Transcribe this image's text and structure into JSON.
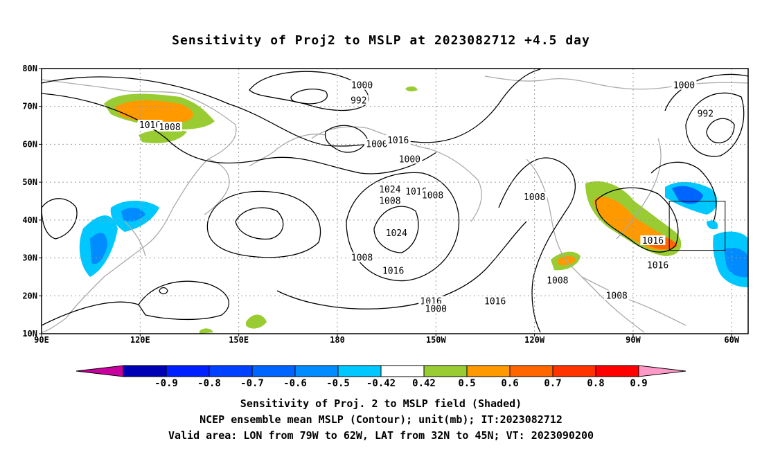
{
  "title": "Sensitivity of Proj2 to MSLP at 2023082712 +4.5 day",
  "lon_ticks": [
    "90E",
    "120E",
    "150E",
    "180",
    "150W",
    "120W",
    "90W",
    "60W"
  ],
  "lat_ticks": [
    "80N",
    "70N",
    "60N",
    "50N",
    "40N",
    "30N",
    "20N",
    "10N"
  ],
  "contour_labels": [
    {
      "text": "1000",
      "lon": -172.5,
      "lat": 75.5
    },
    {
      "text": "992",
      "lon": -173.5,
      "lat": 71.5
    },
    {
      "text": "1016",
      "lon": 123,
      "lat": 65
    },
    {
      "text": "1008",
      "lon": 129,
      "lat": 64.5
    },
    {
      "text": "1000",
      "lon": -168,
      "lat": 60
    },
    {
      "text": "1000",
      "lon": -158,
      "lat": 56
    },
    {
      "text": "1016",
      "lon": -156,
      "lat": 47.5
    },
    {
      "text": "1008",
      "lon": -151,
      "lat": 46.5
    },
    {
      "text": "1016",
      "lon": -161.5,
      "lat": 61
    },
    {
      "text": "1024",
      "lon": -164,
      "lat": 48
    },
    {
      "text": "1024",
      "lon": -162,
      "lat": 36.5
    },
    {
      "text": "1008",
      "lon": -164,
      "lat": 45
    },
    {
      "text": "1008",
      "lon": -172.5,
      "lat": 30
    },
    {
      "text": "1016",
      "lon": -163,
      "lat": 26.5
    },
    {
      "text": "1016",
      "lon": -151.5,
      "lat": 18.5
    },
    {
      "text": "1000",
      "lon": -150,
      "lat": 16.5
    },
    {
      "text": "1016",
      "lon": -132,
      "lat": 18.5
    },
    {
      "text": "1008",
      "lon": -120,
      "lat": 46
    },
    {
      "text": "1008",
      "lon": -113,
      "lat": 24
    },
    {
      "text": "1008",
      "lon": -95,
      "lat": 20
    },
    {
      "text": "1016",
      "lon": -84,
      "lat": 34.5
    },
    {
      "text": "1016",
      "lon": -82.5,
      "lat": 28
    },
    {
      "text": "1000",
      "lon": -74.5,
      "lat": 75.5
    },
    {
      "text": "992",
      "lon": -68,
      "lat": 68
    }
  ],
  "colorbar": {
    "labels": [
      "-0.9",
      "-0.8",
      "-0.7",
      "-0.6",
      "-0.5",
      "-0.42",
      "0.42",
      "0.5",
      "0.6",
      "0.7",
      "0.8",
      "0.9"
    ],
    "colors": [
      "#c8009e",
      "#0000b4",
      "#0020ff",
      "#0040ff",
      "#0064ff",
      "#008cff",
      "#00c8ff",
      "#ffffff",
      "#99cc33",
      "#ff9900",
      "#ff6600",
      "#ff3300",
      "#ff0000",
      "#ff99c8"
    ]
  },
  "captions": {
    "line1": "Sensitivity of Proj. 2 to MSLP field (Shaded)",
    "line2": "NCEP ensemble mean MSLP (Contour); unit(mb); IT:2023082712",
    "line3": "Valid area: LON from 79W to 62W, LAT from 32N to 45N; VT: 2023090200"
  },
  "valid_area": {
    "lon_min": -79,
    "lon_max": -62,
    "lat_min": 32,
    "lat_max": 45
  }
}
